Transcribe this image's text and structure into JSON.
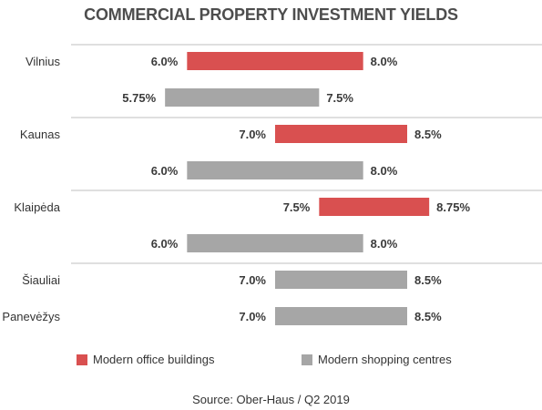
{
  "title": "COMMERCIAL PROPERTY INVESTMENT YIELDS",
  "source": "Source: Ober-Haus  / Q2 2019",
  "colors": {
    "office": "#d95050",
    "shopping": "#a6a6a6",
    "divider": "#bfbfbf"
  },
  "chart_data": {
    "type": "bar",
    "orientation": "horizontal-range",
    "title": "COMMERCIAL PROPERTY INVESTMENT YIELDS",
    "xlim": [
      4.0,
      10.0
    ],
    "grid": false,
    "legend_position": "bottom",
    "series_names": [
      "Modern office buildings",
      "Modern shopping centres"
    ],
    "rows": [
      {
        "city": "Vilnius",
        "series": "Modern office buildings",
        "min": 6.0,
        "max": 8.0,
        "min_label": "6.0%",
        "max_label": "8.0%"
      },
      {
        "city": "",
        "series": "Modern shopping centres",
        "min": 5.75,
        "max": 7.5,
        "min_label": "5.75%",
        "max_label": "7.5%"
      },
      {
        "city": "Kaunas",
        "series": "Modern office buildings",
        "min": 7.0,
        "max": 8.5,
        "min_label": "7.0%",
        "max_label": "8.5%"
      },
      {
        "city": "",
        "series": "Modern shopping centres",
        "min": 6.0,
        "max": 8.0,
        "min_label": "6.0%",
        "max_label": "8.0%"
      },
      {
        "city": "Klaipėda",
        "series": "Modern office buildings",
        "min": 7.5,
        "max": 8.75,
        "min_label": "7.5%",
        "max_label": "8.75%"
      },
      {
        "city": "",
        "series": "Modern shopping centres",
        "min": 6.0,
        "max": 8.0,
        "min_label": "6.0%",
        "max_label": "8.0%"
      },
      {
        "city": "Šiauliai",
        "series": "Modern shopping centres",
        "min": 7.0,
        "max": 8.5,
        "min_label": "7.0%",
        "max_label": "8.5%"
      },
      {
        "city": "Panevėžys",
        "series": "Modern shopping centres",
        "min": 7.0,
        "max": 8.5,
        "min_label": "7.0%",
        "max_label": "8.5%"
      }
    ]
  }
}
